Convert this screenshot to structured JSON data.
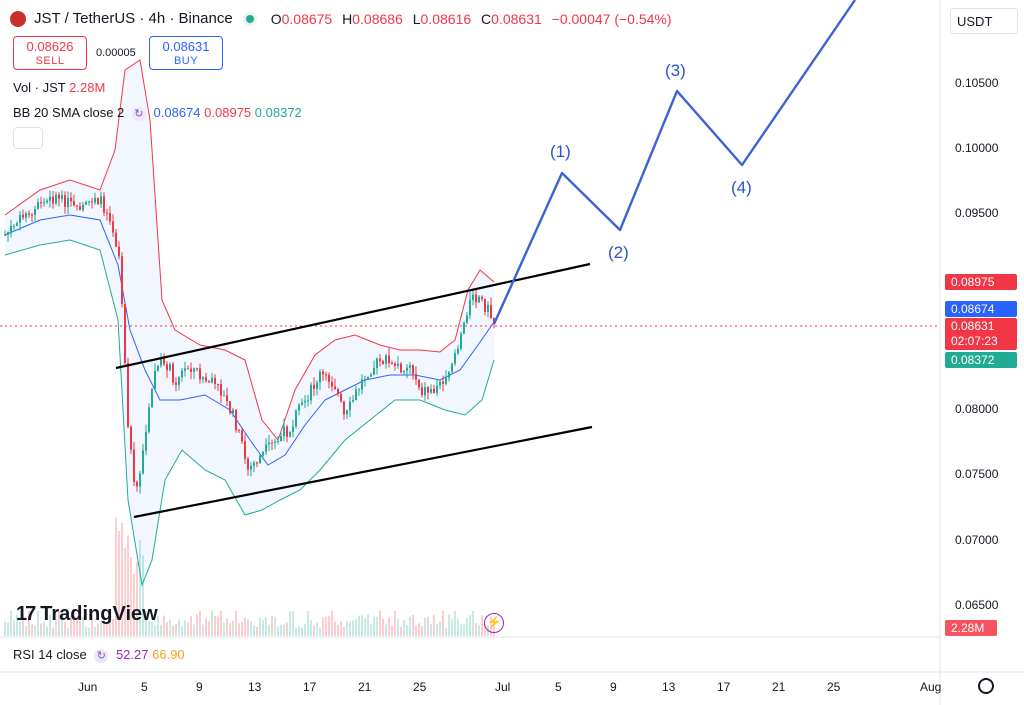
{
  "header": {
    "symbol": "JST / TetherUS · 4h · Binance",
    "o_label": "O",
    "o_value": "0.08675",
    "h_label": "H",
    "h_value": "0.08686",
    "l_label": "L",
    "l_value": "0.08616",
    "c_label": "C",
    "c_value": "0.08631",
    "change": "−0.00047 (−0.54%)"
  },
  "trade": {
    "sell_price": "0.08626",
    "sell_label": "SELL",
    "spread": "0.00005",
    "buy_price": "0.08631",
    "buy_label": "BUY"
  },
  "indicators": {
    "vol_label": "Vol · JST",
    "vol_value": "2.28M",
    "bb_label": "BB 20 SMA close 2",
    "bb_basis": "0.08674",
    "bb_upper": "0.08975",
    "bb_lower": "0.08372",
    "rsi_label": "RSI 14 close",
    "rsi_value": "52.27",
    "rsi_ma": "66.90"
  },
  "currency": "USDT",
  "price_labels": {
    "upper": "0.08975",
    "basis": "0.08674",
    "last": "0.08631",
    "countdown": "02:07:23",
    "lower": "0.08372",
    "volume": "2.28M"
  },
  "y_ticks": [
    "0.10500",
    "0.10000",
    "0.09500",
    "0.08000",
    "0.07500",
    "0.07000",
    "0.06500"
  ],
  "x_ticks": [
    "Jun",
    "5",
    "9",
    "13",
    "17",
    "21",
    "25",
    "Jul",
    "5",
    "9",
    "13",
    "17",
    "21",
    "25",
    "Aug"
  ],
  "waves": [
    "(1)",
    "(2)",
    "(3)",
    "(4)"
  ],
  "brand": "TradingView",
  "colors": {
    "up": "#22ab94",
    "down": "#f23645",
    "basis": "#2962ff",
    "projection": "#3b63d6"
  }
}
